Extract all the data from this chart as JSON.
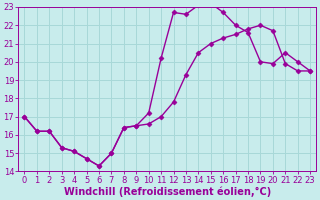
{
  "xlabel": "Windchill (Refroidissement éolien,°C)",
  "bg_color": "#c8ecec",
  "grid_color": "#a8d8d8",
  "line_color": "#990099",
  "xlim": [
    -0.5,
    23.5
  ],
  "ylim": [
    14,
    23
  ],
  "xticks": [
    0,
    1,
    2,
    3,
    4,
    5,
    6,
    7,
    8,
    9,
    10,
    11,
    12,
    13,
    14,
    15,
    16,
    17,
    18,
    19,
    20,
    21,
    22,
    23
  ],
  "yticks": [
    14,
    15,
    16,
    17,
    18,
    19,
    20,
    21,
    22,
    23
  ],
  "line1_x": [
    0,
    1,
    2,
    3,
    4,
    5,
    6,
    7,
    8,
    9,
    10,
    11,
    12,
    13,
    14,
    15,
    16,
    17,
    18,
    19,
    20,
    21,
    22,
    23
  ],
  "line1_y": [
    17.0,
    16.2,
    16.2,
    15.3,
    15.1,
    14.7,
    14.3,
    15.0,
    16.4,
    16.5,
    16.6,
    17.0,
    17.8,
    19.3,
    20.5,
    21.0,
    21.3,
    21.5,
    21.8,
    22.0,
    21.7,
    19.9,
    19.5,
    19.5
  ],
  "line2_x": [
    0,
    1,
    2,
    3,
    4,
    5,
    6,
    7,
    8,
    9,
    10,
    11,
    12,
    13,
    14,
    15,
    16,
    17,
    18,
    19,
    20,
    21,
    22,
    23
  ],
  "line2_y": [
    17.0,
    16.2,
    16.2,
    15.3,
    15.1,
    14.7,
    14.3,
    15.0,
    16.4,
    16.5,
    17.2,
    20.2,
    22.7,
    22.6,
    23.1,
    23.2,
    22.7,
    22.0,
    21.6,
    20.0,
    19.9,
    20.5,
    20.0,
    19.5
  ],
  "marker": "D",
  "marker_size": 2.5,
  "line_width": 1.0,
  "font_size": 7,
  "tick_font_size": 6.0
}
